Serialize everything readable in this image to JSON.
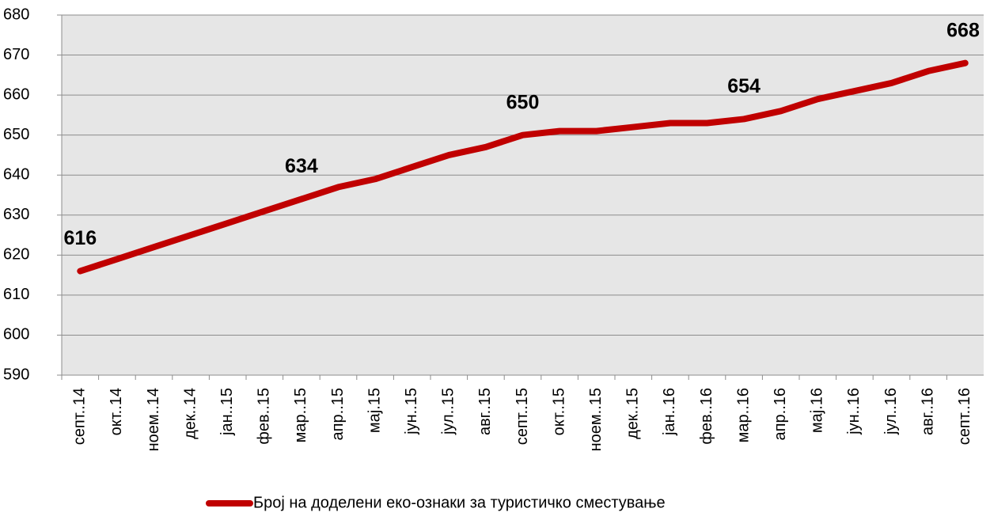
{
  "chart_data": {
    "type": "line",
    "categories": [
      "септ..14",
      "окт..14",
      "ноем..14",
      "дек..14",
      "јан..15",
      "фев..15",
      "мар..15",
      "апр..15",
      "мај.15",
      "јун..15",
      "јул..15",
      "авг..15",
      "септ..15",
      "окт..15",
      "ноем..15",
      "дек..15",
      "јан..16",
      "фев..16",
      "мар..16",
      "апр..16",
      "мај.16",
      "јун..16",
      "јул..16",
      "авг..16",
      "септ..16"
    ],
    "series": [
      {
        "name": "Број на доделени еко-ознаки за туристичко сместување",
        "color": "#c00000",
        "values": [
          616,
          619,
          622,
          625,
          628,
          631,
          634,
          637,
          639,
          642,
          645,
          647,
          650,
          651,
          651,
          652,
          653,
          653,
          654,
          656,
          659,
          661,
          663,
          666,
          668
        ],
        "value_labels": [
          "616",
          null,
          null,
          null,
          null,
          null,
          "634",
          null,
          null,
          null,
          null,
          null,
          "650",
          null,
          null,
          null,
          null,
          null,
          "654",
          null,
          null,
          null,
          null,
          null,
          "668"
        ]
      }
    ],
    "ylim": [
      590,
      680
    ],
    "yticks": [
      590,
      600,
      610,
      620,
      630,
      640,
      650,
      660,
      670,
      680
    ],
    "grid": true,
    "legend": "bottom"
  }
}
